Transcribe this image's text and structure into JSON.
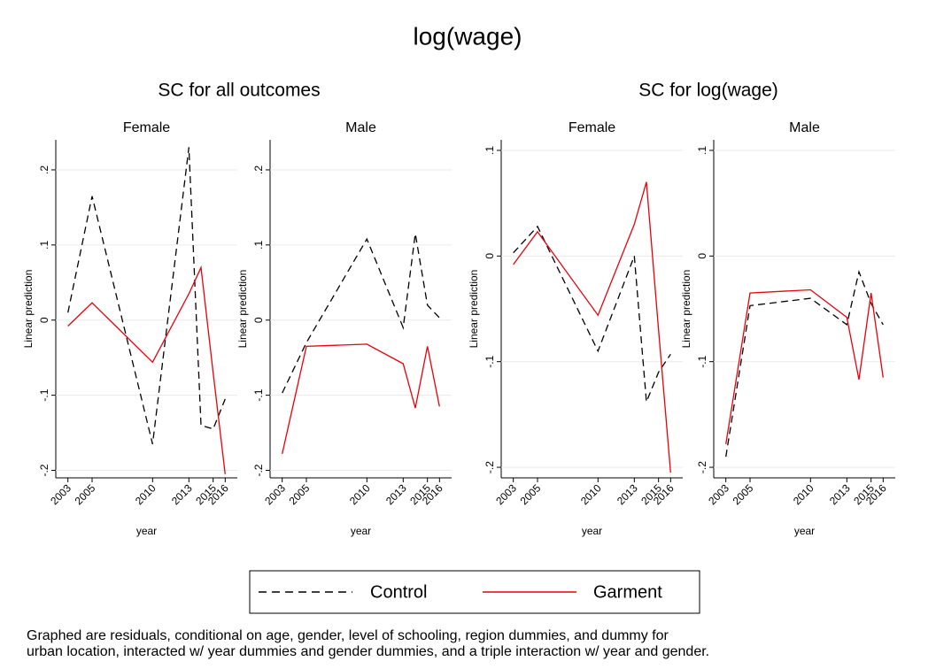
{
  "title": "log(wage)",
  "groups": [
    "SC for all outcomes",
    "SC for log(wage)"
  ],
  "note": [
    "Graphed are residuals, conditional on age, gender, level of schooling, region dummies, and dummy for",
    "urban location, interacted w/ year dummies and gender dummies, and a triple interaction w/ year and gender."
  ],
  "chart_data": [
    {
      "type": "line",
      "group": 0,
      "title": "Female",
      "xlabel": "year",
      "ylabel": "Linear prediction",
      "x": [
        2003,
        2005,
        2010,
        2013,
        2014,
        2015,
        2016
      ],
      "xlim": [
        2002,
        2017
      ],
      "xticks": [
        2003,
        2005,
        2010,
        2013,
        2015,
        2016
      ],
      "ylim": [
        -0.21,
        0.24
      ],
      "yticks": [
        {
          "value": -0.2,
          "label": "-.2"
        },
        {
          "value": -0.1,
          "label": "-.1"
        },
        0,
        {
          "value": 0.1,
          "label": ".1"
        },
        {
          "value": 0.2,
          "label": ".2"
        }
      ],
      "grid": true,
      "series": [
        {
          "name": "Control",
          "color": "#000000",
          "style": "dashed",
          "values": [
            0.01,
            0.165,
            -0.165,
            0.23,
            -0.14,
            -0.145,
            -0.105
          ]
        },
        {
          "name": "Garment",
          "color": "#e8000b",
          "style": "solid",
          "values": [
            -0.008,
            0.023,
            -0.056,
            0.035,
            0.07,
            -0.07,
            -0.205
          ]
        }
      ]
    },
    {
      "type": "line",
      "group": 0,
      "title": "Male",
      "xlabel": "year",
      "ylabel": "Linear prediction",
      "x": [
        2003,
        2005,
        2010,
        2013,
        2014,
        2015,
        2016
      ],
      "xlim": [
        2002,
        2017
      ],
      "xticks": [
        2003,
        2005,
        2010,
        2013,
        2015,
        2016
      ],
      "ylim": [
        -0.21,
        0.24
      ],
      "yticks": [
        {
          "value": -0.2,
          "label": "-.2"
        },
        {
          "value": -0.1,
          "label": "-.1"
        },
        0,
        {
          "value": 0.1,
          "label": ".1"
        },
        {
          "value": 0.2,
          "label": ".2"
        }
      ],
      "grid": true,
      "series": [
        {
          "name": "Control",
          "color": "#000000",
          "style": "dashed",
          "values": [
            -0.097,
            -0.03,
            0.108,
            -0.01,
            0.115,
            0.02,
            0.003
          ]
        },
        {
          "name": "Garment",
          "color": "#e8000b",
          "style": "solid",
          "values": [
            -0.178,
            -0.035,
            -0.032,
            -0.058,
            -0.117,
            -0.035,
            -0.115
          ]
        }
      ]
    },
    {
      "type": "line",
      "group": 1,
      "title": "Female",
      "xlabel": "year",
      "ylabel": "Linear prediction",
      "x": [
        2003,
        2005,
        2010,
        2013,
        2014,
        2015,
        2016
      ],
      "xlim": [
        2002,
        2017
      ],
      "xticks": [
        2003,
        2005,
        2010,
        2013,
        2015,
        2016
      ],
      "ylim": [
        -0.21,
        0.11
      ],
      "yticks": [
        {
          "value": -0.2,
          "label": "-.2"
        },
        {
          "value": -0.1,
          "label": "-.1"
        },
        0,
        {
          "value": 0.1,
          "label": ".1"
        }
      ],
      "grid": true,
      "series": [
        {
          "name": "Control",
          "color": "#000000",
          "style": "dashed",
          "values": [
            0.003,
            0.028,
            -0.09,
            0.0,
            -0.138,
            -0.11,
            -0.093
          ]
        },
        {
          "name": "Garment",
          "color": "#e8000b",
          "style": "solid",
          "values": [
            -0.008,
            0.023,
            -0.056,
            0.03,
            0.07,
            -0.07,
            -0.205
          ]
        }
      ]
    },
    {
      "type": "line",
      "group": 1,
      "title": "Male",
      "xlabel": "year",
      "ylabel": "Linear prediction",
      "x": [
        2003,
        2005,
        2010,
        2013,
        2014,
        2015,
        2016
      ],
      "xlim": [
        2002,
        2017
      ],
      "xticks": [
        2003,
        2005,
        2010,
        2013,
        2015,
        2016
      ],
      "ylim": [
        -0.21,
        0.11
      ],
      "yticks": [
        {
          "value": -0.2,
          "label": "-.2"
        },
        {
          "value": -0.1,
          "label": "-.1"
        },
        0,
        {
          "value": 0.1,
          "label": ".1"
        }
      ],
      "grid": true,
      "series": [
        {
          "name": "Control",
          "color": "#000000",
          "style": "dashed",
          "values": [
            -0.19,
            -0.047,
            -0.04,
            -0.065,
            -0.015,
            -0.045,
            -0.065
          ]
        },
        {
          "name": "Garment",
          "color": "#e8000b",
          "style": "solid",
          "values": [
            -0.178,
            -0.035,
            -0.032,
            -0.058,
            -0.117,
            -0.035,
            -0.115
          ]
        }
      ]
    }
  ]
}
